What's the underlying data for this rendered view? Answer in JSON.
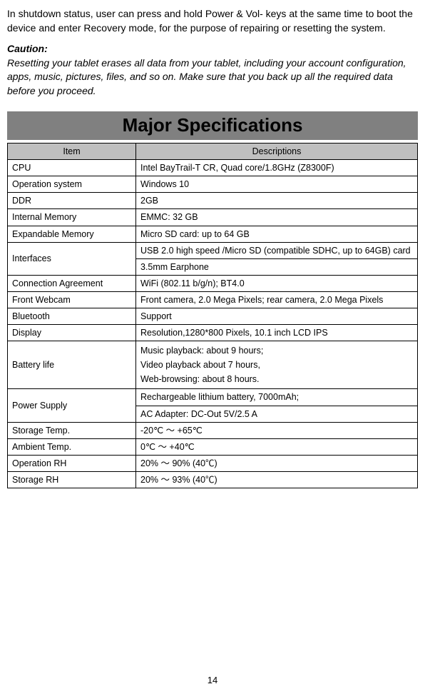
{
  "intro": "In shutdown status, user can press and hold Power & Vol- keys at the same time to boot the device and enter Recovery mode, for the purpose of repairing or resetting the system.",
  "caution_label": "Caution:",
  "caution_text": "Resetting your tablet erases all data from your tablet, including your account configuration, apps, music, pictures, files, and so on. Make sure that you back up all the required data before you proceed.",
  "section_title": "Major Specifications",
  "table": {
    "header_item": "Item",
    "header_desc": "Descriptions",
    "rows": {
      "cpu": {
        "item": "CPU",
        "desc": "Intel BayTrail-T CR, Quad core/1.8GHz (Z8300F)"
      },
      "os": {
        "item": "Operation system",
        "desc": "Windows 10"
      },
      "ddr": {
        "item": "DDR",
        "desc": "2GB"
      },
      "imem": {
        "item": "Internal Memory",
        "desc": "EMMC: 32 GB"
      },
      "emem": {
        "item": "Expandable Memory",
        "desc": "Micro SD card: up to 64 GB"
      },
      "iface": {
        "item": "Interfaces",
        "desc1": "USB 2.0 high speed /Micro SD (compatible SDHC, up to 64GB) card",
        "desc2": "3.5mm Earphone"
      },
      "conn": {
        "item": "Connection   Agreement",
        "desc": "WiFi (802.11 b/g/n); BT4.0"
      },
      "cam": {
        "item": "Front Webcam",
        "desc": "Front camera, 2.0 Mega Pixels; rear camera, 2.0 Mega Pixels"
      },
      "bt": {
        "item": "Bluetooth",
        "desc": "Support"
      },
      "disp": {
        "item": "Display",
        "desc": "Resolution,1280*800 Pixels, 10.1 inch LCD IPS"
      },
      "batt": {
        "item": "Battery life",
        "l1": "Music playback: about 9 hours;",
        "l2": "Video playback about 7 hours,",
        "l3": "Web-browsing: about 8 hours."
      },
      "pwr": {
        "item": "Power Supply",
        "desc1": "Rechargeable lithium battery, 7000mAh;",
        "desc2": "AC Adapter: DC-Out 5V/2.5 A"
      },
      "stemp": {
        "item": "Storage Temp.",
        "desc": "-20℃ ～ +65℃"
      },
      "atemp": {
        "item": "Ambient Temp.",
        "desc": "0℃ ～ +40℃"
      },
      "orh": {
        "item": "Operation RH",
        "desc": "20% ～ 90% (40℃)"
      },
      "srh": {
        "item": "Storage RH",
        "desc": "20% ～ 93% (40℃)"
      }
    }
  },
  "page_number": "14"
}
